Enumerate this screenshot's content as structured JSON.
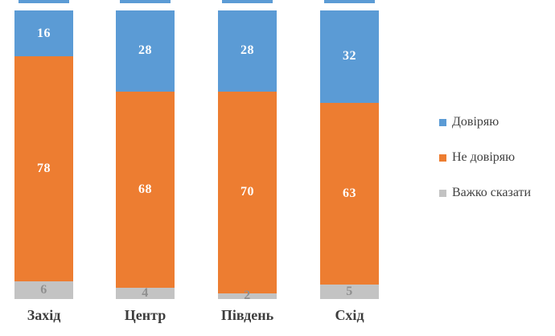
{
  "chart_data": {
    "type": "bar",
    "stacked": true,
    "orientation": "vertical",
    "title": "",
    "xlabel": "",
    "ylabel": "",
    "ylim": [
      0,
      100
    ],
    "grid": false,
    "axes_visible": false,
    "data_labels": true,
    "legend_position": "right",
    "categories": [
      "Захід",
      "Центр",
      "Південь",
      "Схід"
    ],
    "series": [
      {
        "name": "Довіряю",
        "color": "#5B9BD5",
        "label_color": "#FFFFFF",
        "values": [
          16,
          28,
          28,
          32
        ]
      },
      {
        "name": "Не довіряю",
        "color": "#ED7D31",
        "label_color": "#FFFFFF",
        "values": [
          78,
          68,
          70,
          63
        ]
      },
      {
        "name": "Важко сказати",
        "color": "#C3C3C3",
        "label_color": "#8F8F8F",
        "values": [
          6,
          4,
          2,
          5
        ]
      }
    ],
    "category_label_color": "#3D3D3D",
    "legend_text_color": "#404040"
  }
}
